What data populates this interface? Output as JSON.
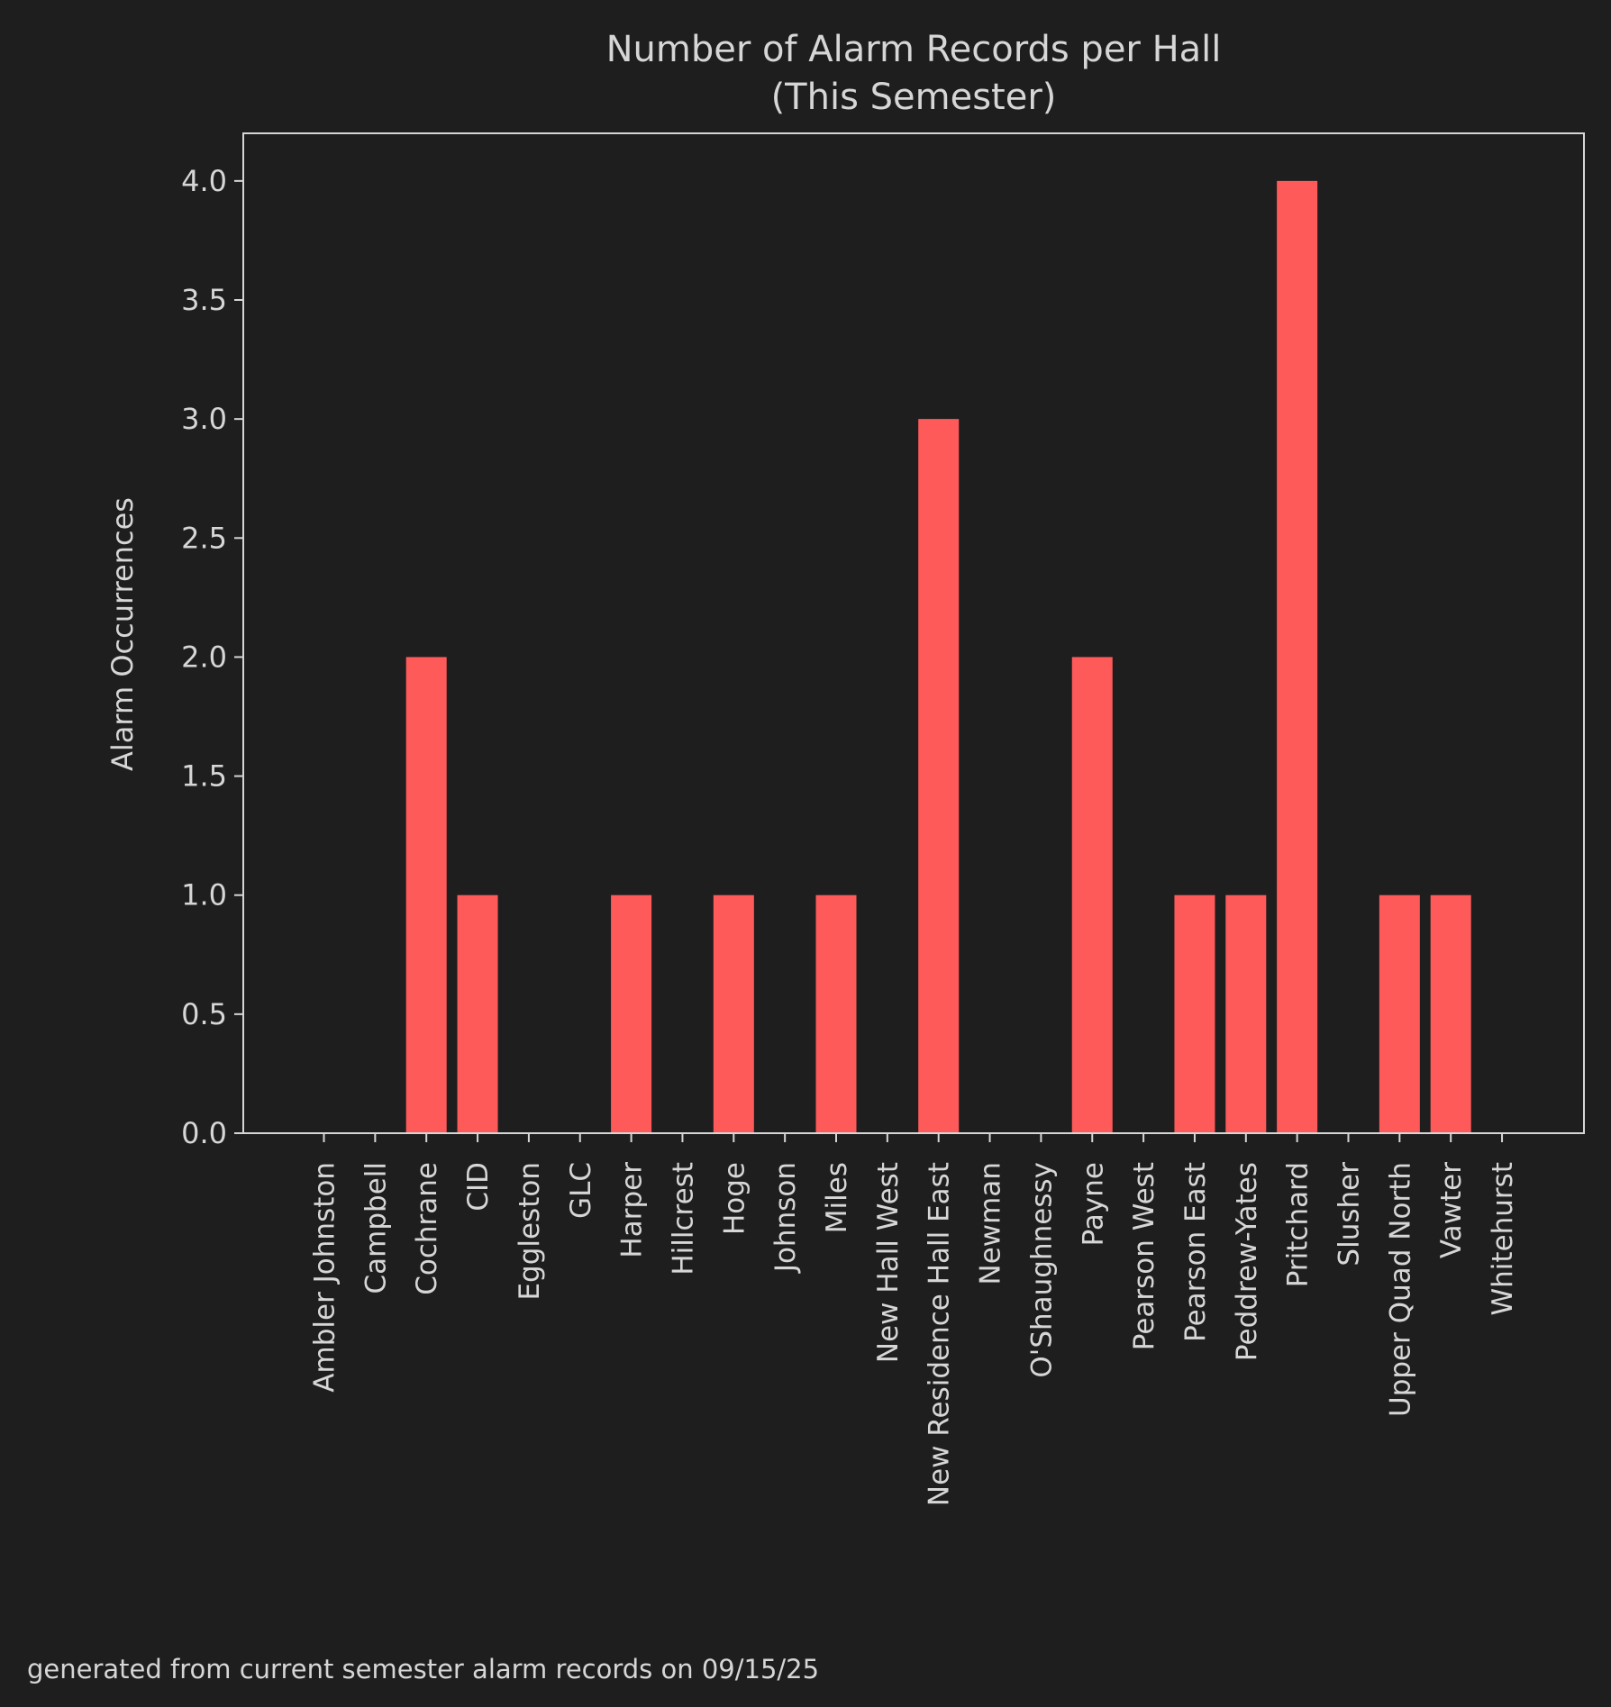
{
  "chart_data": {
    "type": "bar",
    "title_line1": "Number of Alarm Records per Hall",
    "title_line2": "(This Semester)",
    "xlabel": "",
    "ylabel": "Alarm Occurrences",
    "ylim": [
      0,
      4.2
    ],
    "yticks": [
      "0.0",
      "0.5",
      "1.0",
      "1.5",
      "2.0",
      "2.5",
      "3.0",
      "3.5",
      "4.0"
    ],
    "ytick_values": [
      0,
      0.5,
      1,
      1.5,
      2,
      2.5,
      3,
      3.5,
      4
    ],
    "categories": [
      "Ambler Johnston",
      "Campbell",
      "Cochrane",
      "CID",
      "Eggleston",
      "GLC",
      "Harper",
      "Hillcrest",
      "Hoge",
      "Johnson",
      "Miles",
      "New Hall West",
      "New Residence Hall East",
      "Newman",
      "O'Shaughnessy",
      "Payne",
      "Pearson West",
      "Pearson East",
      "Peddrew-Yates",
      "Pritchard",
      "Slusher",
      "Upper Quad North",
      "Vawter",
      "Whitehurst"
    ],
    "values": [
      0,
      0,
      2,
      1,
      0,
      0,
      1,
      0,
      1,
      0,
      1,
      0,
      3,
      0,
      0,
      2,
      0,
      1,
      1,
      4,
      0,
      1,
      1,
      0
    ],
    "bar_color": "#ff5a5a",
    "axis_color": "#d6d6d6",
    "background": "#1e1e1f",
    "grid": false,
    "footnote": "generated from current semester alarm records on 09/15/25"
  }
}
